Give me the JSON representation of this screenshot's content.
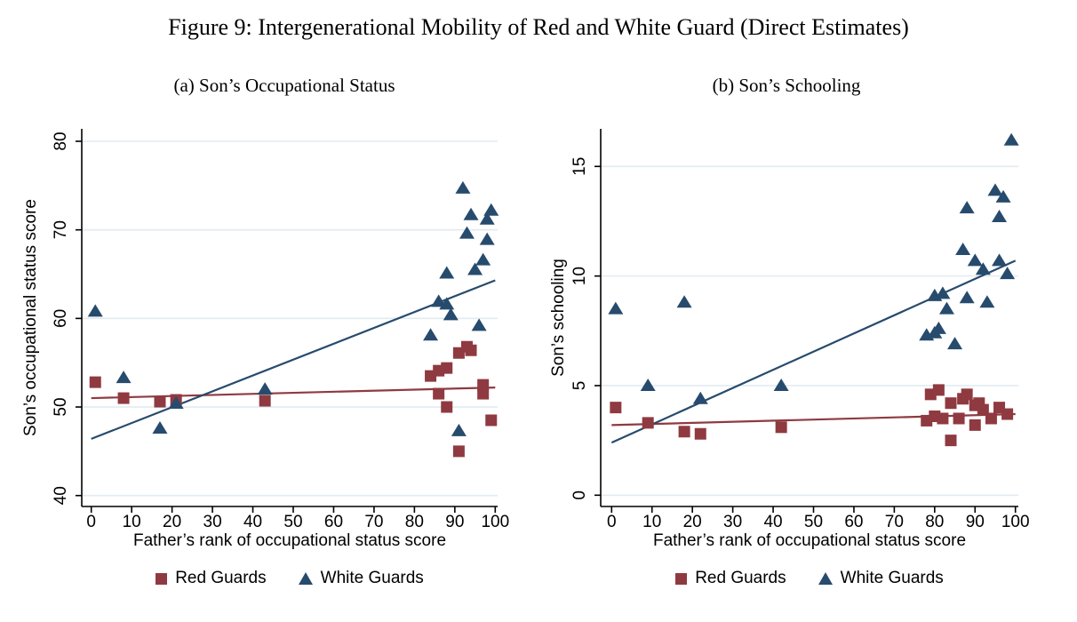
{
  "figure": {
    "title": "Figure 9: Intergenerational Mobility of Red and White Guard (Direct Estimates)"
  },
  "colors": {
    "maroon": "#8F3A40",
    "navy": "#274B6D",
    "gridline": "#E2EBF0",
    "axis": "#000000"
  },
  "legend": {
    "items": [
      {
        "label": "Red Guards",
        "marker": "square",
        "color": "#8F3A40"
      },
      {
        "label": "White Guards",
        "marker": "triangle",
        "color": "#274B6D"
      }
    ]
  },
  "chart_data": [
    {
      "type": "scatter",
      "panel_label": "(a) Son’s Occupational Status",
      "xlabel": "Father’s rank of occupational status score",
      "ylabel": "Son’s occupational status score",
      "xlim": [
        0,
        100
      ],
      "ylim": [
        40,
        80
      ],
      "xticks": [
        0,
        10,
        20,
        30,
        40,
        50,
        60,
        70,
        80,
        90,
        100
      ],
      "yticks": [
        40,
        50,
        60,
        70,
        80
      ],
      "grid": "horizontal",
      "legend_position": "bottom",
      "series": [
        {
          "name": "Red Guards",
          "marker": "square",
          "color": "#8F3A40",
          "points": [
            [
              1,
              52.8
            ],
            [
              8,
              51.0
            ],
            [
              17,
              50.6
            ],
            [
              21,
              50.8
            ],
            [
              43,
              50.7
            ],
            [
              84,
              53.5
            ],
            [
              86,
              54.1
            ],
            [
              88,
              54.4
            ],
            [
              86,
              51.5
            ],
            [
              88,
              50.0
            ],
            [
              91,
              56.1
            ],
            [
              93,
              56.8
            ],
            [
              94,
              56.4
            ],
            [
              97,
              52.5
            ],
            [
              97,
              51.5
            ],
            [
              99,
              48.5
            ],
            [
              91,
              45.0
            ]
          ]
        },
        {
          "name": "White Guards",
          "marker": "triangle",
          "color": "#274B6D",
          "points": [
            [
              1,
              60.8
            ],
            [
              8,
              53.3
            ],
            [
              17,
              47.6
            ],
            [
              21,
              50.4
            ],
            [
              43,
              52.0
            ],
            [
              84,
              58.1
            ],
            [
              86,
              61.9
            ],
            [
              88,
              61.6
            ],
            [
              88,
              65.1
            ],
            [
              89,
              60.4
            ],
            [
              91,
              47.3
            ],
            [
              92,
              74.7
            ],
            [
              93,
              69.6
            ],
            [
              94,
              71.7
            ],
            [
              95,
              65.5
            ],
            [
              96,
              59.2
            ],
            [
              97,
              66.6
            ],
            [
              98,
              68.9
            ],
            [
              98,
              71.2
            ],
            [
              99,
              72.2
            ]
          ]
        }
      ],
      "fit_lines": [
        {
          "name": "Red Guards fit",
          "color": "#8F3A40",
          "from": [
            0,
            51.0
          ],
          "to": [
            100,
            52.2
          ]
        },
        {
          "name": "White Guards fit",
          "color": "#274B6D",
          "from": [
            0,
            46.4
          ],
          "to": [
            100,
            64.3
          ]
        }
      ]
    },
    {
      "type": "scatter",
      "panel_label": "(b) Son’s Schooling",
      "xlabel": "Father’s rank of occupational status score",
      "ylabel": "Son’s schooling",
      "xlim": [
        0,
        100
      ],
      "ylim": [
        0,
        16.5
      ],
      "xticks": [
        0,
        10,
        20,
        30,
        40,
        50,
        60,
        70,
        80,
        90,
        100
      ],
      "yticks": [
        0,
        5,
        10,
        15
      ],
      "grid": "horizontal",
      "legend_position": "bottom",
      "series": [
        {
          "name": "Red Guards",
          "marker": "square",
          "color": "#8F3A40",
          "points": [
            [
              1,
              4.0
            ],
            [
              9,
              3.3
            ],
            [
              18,
              2.9
            ],
            [
              22,
              2.8
            ],
            [
              42,
              3.1
            ],
            [
              78,
              3.4
            ],
            [
              79,
              4.6
            ],
            [
              81,
              4.8
            ],
            [
              80,
              3.6
            ],
            [
              82,
              3.5
            ],
            [
              84,
              4.2
            ],
            [
              84,
              2.5
            ],
            [
              86,
              3.5
            ],
            [
              87,
              4.4
            ],
            [
              88,
              4.6
            ],
            [
              90,
              4.1
            ],
            [
              91,
              4.2
            ],
            [
              92,
              3.9
            ],
            [
              90,
              3.2
            ],
            [
              94,
              3.5
            ],
            [
              96,
              4.0
            ],
            [
              98,
              3.7
            ]
          ]
        },
        {
          "name": "White Guards",
          "marker": "triangle",
          "color": "#274B6D",
          "points": [
            [
              1,
              8.5
            ],
            [
              9,
              5.0
            ],
            [
              18,
              8.8
            ],
            [
              22,
              4.4
            ],
            [
              42,
              5.0
            ],
            [
              78,
              7.3
            ],
            [
              80,
              9.1
            ],
            [
              80,
              7.4
            ],
            [
              81,
              7.6
            ],
            [
              82,
              9.2
            ],
            [
              83,
              8.5
            ],
            [
              85,
              6.9
            ],
            [
              87,
              11.2
            ],
            [
              88,
              13.1
            ],
            [
              88,
              9.0
            ],
            [
              90,
              10.7
            ],
            [
              92,
              10.3
            ],
            [
              93,
              8.8
            ],
            [
              95,
              13.9
            ],
            [
              96,
              12.7
            ],
            [
              96,
              10.7
            ],
            [
              97,
              13.6
            ],
            [
              98,
              10.1
            ],
            [
              99,
              16.2
            ]
          ]
        }
      ],
      "fit_lines": [
        {
          "name": "Red Guards fit",
          "color": "#8F3A40",
          "from": [
            0,
            3.2
          ],
          "to": [
            100,
            3.7
          ]
        },
        {
          "name": "White Guards fit",
          "color": "#274B6D",
          "from": [
            0,
            2.4
          ],
          "to": [
            100,
            10.7
          ]
        }
      ]
    }
  ]
}
